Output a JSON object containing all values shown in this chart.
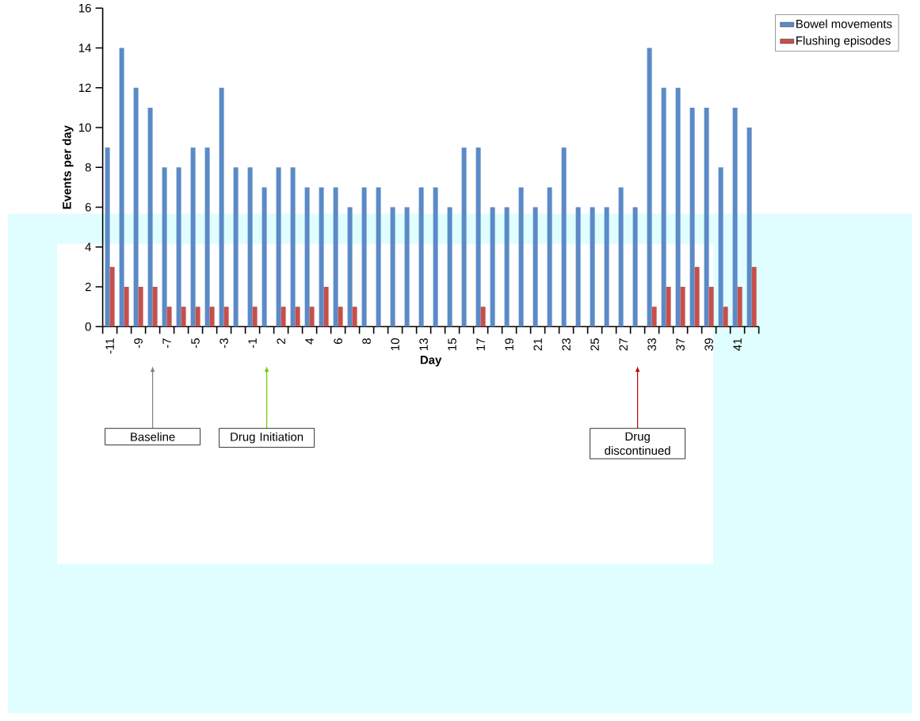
{
  "chart_data": {
    "type": "bar",
    "xlabel": "Day",
    "ylabel": "Events per day",
    "categories": [
      "-11",
      null,
      "-9",
      null,
      "-7",
      null,
      "-5",
      null,
      "-3",
      null,
      "-1",
      null,
      "2",
      null,
      "4",
      null,
      "6",
      null,
      "8",
      null,
      "10",
      null,
      "13",
      null,
      "15",
      null,
      "17",
      null,
      "19",
      null,
      "21",
      null,
      "23",
      null,
      "25",
      null,
      "27",
      null,
      "33",
      null,
      "37",
      null,
      "39",
      null,
      "41",
      null
    ],
    "series": [
      {
        "name": "Bowel movements",
        "color": "#5b8ac6",
        "values": [
          9,
          14,
          12,
          11,
          8,
          8,
          9,
          9,
          12,
          8,
          8,
          7,
          8,
          8,
          7,
          7,
          7,
          6,
          7,
          7,
          6,
          6,
          7,
          7,
          6,
          9,
          9,
          6,
          6,
          7,
          6,
          7,
          9,
          6,
          6,
          6,
          7,
          6,
          14,
          12,
          12,
          11,
          11,
          8,
          11,
          10
        ]
      },
      {
        "name": "Flushing episodes",
        "color": "#c5504b",
        "values": [
          3,
          2,
          2,
          2,
          1,
          1,
          1,
          1,
          1,
          0,
          1,
          0,
          1,
          1,
          1,
          2,
          1,
          1,
          0,
          0,
          0,
          0,
          0,
          0,
          0,
          0,
          1,
          0,
          0,
          0,
          0,
          0,
          0,
          0,
          0,
          0,
          0,
          0,
          1,
          2,
          2,
          3,
          2,
          1,
          2,
          3
        ]
      }
    ],
    "ylim": [
      0,
      16
    ],
    "yticks": [
      0,
      2,
      4,
      6,
      8,
      10,
      12,
      14,
      16
    ],
    "legend": "top right",
    "grid": false,
    "annotations": [
      "Baseline",
      "Drug Initiation",
      "Drug discontinued"
    ]
  }
}
